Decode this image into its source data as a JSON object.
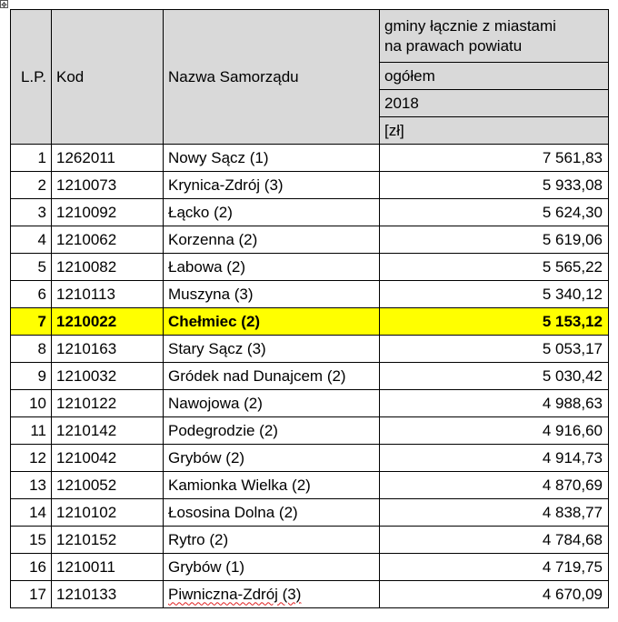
{
  "move_handle_glyph": "✥",
  "header": {
    "lp": "L.P.",
    "kod": "Kod",
    "nazwa": "Nazwa Samorządu",
    "group_line1": "gminy łącznie z miastami",
    "group_line2": "na prawach powiatu",
    "ogolem": "ogółem",
    "year": "2018",
    "unit": "[zł]"
  },
  "highlight_color": "#ffff00",
  "header_bg": "#d9d9d9",
  "rows": [
    {
      "lp": "1",
      "kod": "1262011",
      "nazwa": "Nowy Sącz (1)",
      "value": "7 561,83"
    },
    {
      "lp": "2",
      "kod": "1210073",
      "nazwa": "Krynica-Zdrój (3)",
      "value": "5 933,08"
    },
    {
      "lp": "3",
      "kod": "1210092",
      "nazwa": "Łącko (2)",
      "value": "5 624,30"
    },
    {
      "lp": "4",
      "kod": "1210062",
      "nazwa": "Korzenna  (2)",
      "value": "5 619,06"
    },
    {
      "lp": "5",
      "kod": "1210082",
      "nazwa": "Łabowa (2)",
      "value": "5 565,22"
    },
    {
      "lp": "6",
      "kod": "1210113",
      "nazwa": "Muszyna (3)",
      "value": "5 340,12"
    },
    {
      "lp": "7",
      "kod": "1210022",
      "nazwa": "Chełmiec (2)",
      "value": "5 153,12"
    },
    {
      "lp": "8",
      "kod": "1210163",
      "nazwa": "Stary Sącz (3)",
      "value": "5 053,17"
    },
    {
      "lp": "9",
      "kod": "1210032",
      "nazwa": "Gródek nad Dunajcem (2)",
      "value": "5 030,42"
    },
    {
      "lp": "10",
      "kod": "1210122",
      "nazwa": "Nawojowa (2)",
      "value": "4 988,63"
    },
    {
      "lp": "11",
      "kod": "1210142",
      "nazwa": "Podegrodzie  (2)",
      "value": "4 916,60"
    },
    {
      "lp": "12",
      "kod": "1210042",
      "nazwa": "Grybów (2)",
      "value": "4 914,73"
    },
    {
      "lp": "13",
      "kod": "1210052",
      "nazwa": "Kamionka Wielka (2)",
      "value": "4 870,69"
    },
    {
      "lp": "14",
      "kod": "1210102",
      "nazwa": "Łososina Dolna (2)",
      "value": "4 838,77"
    },
    {
      "lp": "15",
      "kod": "1210152",
      "nazwa": "Rytro (2)",
      "value": "4 784,68"
    },
    {
      "lp": "16",
      "kod": "1210011",
      "nazwa": "Grybów (1)",
      "value": "4 719,75"
    },
    {
      "lp": "17",
      "kod": "1210133",
      "nazwa": "Piwniczna-Zdrój (3)",
      "value": "4 670,09"
    }
  ]
}
